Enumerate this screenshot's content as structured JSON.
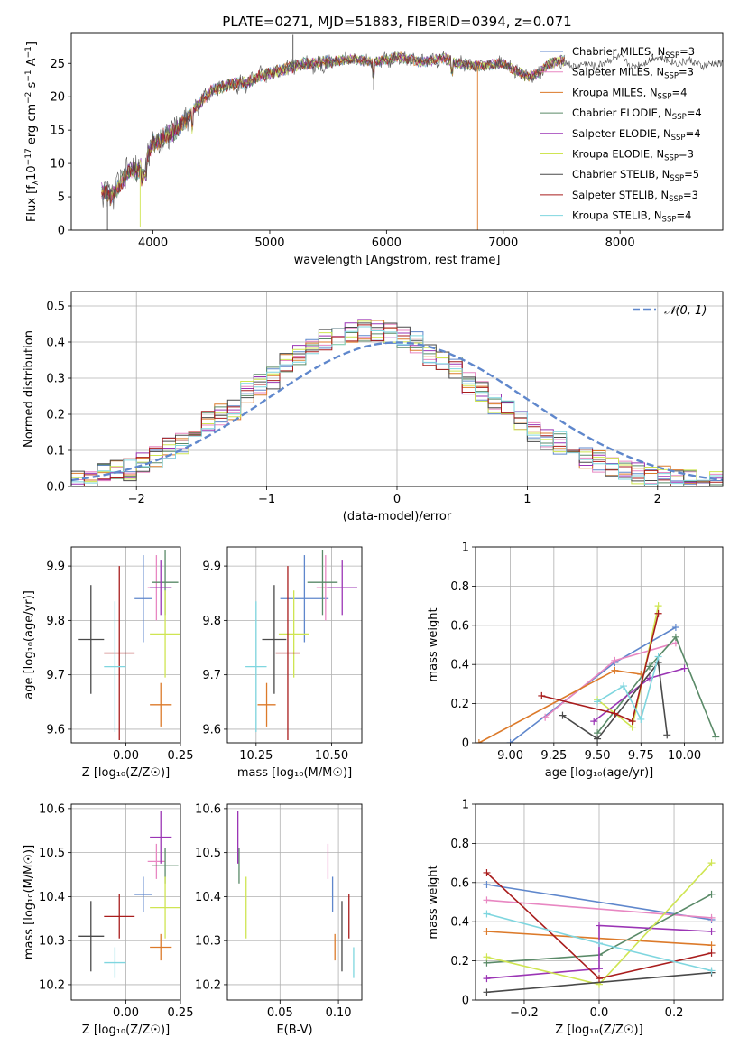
{
  "figure_title": "PLATE=0271, MJD=51883, FIBERID=0394, z=0.071",
  "colors": [
    "#5f87cc",
    "#e887c2",
    "#dc7a2a",
    "#5a8a68",
    "#9b35b5",
    "#cfe552",
    "#4a4a4a",
    "#a91d1d",
    "#7fd6df"
  ],
  "legend_entries": [
    "Chabrier MILES, N",
    "Salpeter MILES, N",
    "Kroupa MILES, N",
    "Chabrier ELODIE, N",
    "Salpeter ELODIE, N",
    "Kroupa ELODIE, N",
    "Chabrier STELIB, N",
    "Salpeter STELIB, N",
    "Kroupa STELIB, N"
  ],
  "legend_sub": "SSP",
  "nssp": [
    "=3",
    "=3",
    "=4",
    "=4",
    "=4",
    "=3",
    "=5",
    "=3",
    "=4"
  ],
  "normal_label": "𝒩(0, 1)",
  "chart_data": [
    {
      "id": "spectrum",
      "type": "line",
      "xlabel": "wavelength [Angstrom, rest frame]",
      "ylabel_parts": [
        "Flux [f",
        "λ",
        "10",
        "−17",
        " erg cm",
        "−2",
        " s",
        "−1",
        " A",
        "−1",
        "]"
      ],
      "xlim": [
        3300,
        8880
      ],
      "ylim": [
        0,
        29.5
      ],
      "xticks": [
        4000,
        5000,
        6000,
        7000,
        8000
      ],
      "yticks": [
        0,
        5,
        10,
        15,
        20,
        25
      ],
      "grid": false,
      "legend": "right",
      "continuum": [
        [
          3560,
          6
        ],
        [
          3640,
          5
        ],
        [
          3720,
          7
        ],
        [
          3800,
          9
        ],
        [
          3880,
          9
        ],
        [
          3950,
          11
        ],
        [
          4000,
          13
        ],
        [
          4100,
          14
        ],
        [
          4200,
          15
        ],
        [
          4300,
          17
        ],
        [
          4400,
          19
        ],
        [
          4500,
          21
        ],
        [
          4600,
          21.5
        ],
        [
          4700,
          22
        ],
        [
          4800,
          22
        ],
        [
          4900,
          23
        ],
        [
          5000,
          23.5
        ],
        [
          5100,
          24
        ],
        [
          5200,
          24.5
        ],
        [
          5300,
          25
        ],
        [
          5400,
          25
        ],
        [
          5500,
          25.2
        ],
        [
          5600,
          25.4
        ],
        [
          5700,
          25.6
        ],
        [
          5800,
          25.4
        ],
        [
          5900,
          25.2
        ],
        [
          6000,
          25.5
        ],
        [
          6100,
          26
        ],
        [
          6200,
          25.6
        ],
        [
          6300,
          25.2
        ],
        [
          6400,
          25.5
        ],
        [
          6500,
          25.8
        ],
        [
          6600,
          25
        ],
        [
          6700,
          24.8
        ],
        [
          6800,
          24.6
        ],
        [
          6900,
          24.8
        ],
        [
          7000,
          25
        ],
        [
          7100,
          24
        ],
        [
          7200,
          23
        ],
        [
          7300,
          23.5
        ],
        [
          7400,
          25
        ],
        [
          7500,
          25.5
        ],
        [
          7600,
          24.5
        ],
        [
          7700,
          25
        ],
        [
          7800,
          24.5
        ],
        [
          7900,
          25.5
        ],
        [
          8000,
          26
        ],
        [
          8100,
          24.5
        ],
        [
          8200,
          25
        ],
        [
          8300,
          26
        ],
        [
          8400,
          25.5
        ],
        [
          8500,
          25
        ],
        [
          8600,
          25.5
        ],
        [
          8700,
          24.5
        ],
        [
          8800,
          25
        ]
      ],
      "spikes": [
        [
          5199,
          29.3,
          "#4a4a4a"
        ],
        [
          6780,
          0,
          "#dc7a2a"
        ],
        [
          7400,
          0,
          "#a91d1d"
        ],
        [
          3610,
          0,
          "#4a4a4a"
        ],
        [
          3890,
          0.5,
          "#cfe552"
        ],
        [
          5890,
          21,
          "#4a4a4a"
        ]
      ]
    },
    {
      "id": "residuals",
      "type": "histogram",
      "xlabel": "(data-model)/error",
      "ylabel": "Normed distribution",
      "xlim": [
        -2.5,
        2.5
      ],
      "ylim": [
        0,
        0.54
      ],
      "xticks": [
        -2,
        -1,
        0,
        1,
        2
      ],
      "yticks": [
        0.0,
        0.1,
        0.2,
        0.3,
        0.4,
        0.5
      ],
      "grid": true,
      "legend": "top-right",
      "bin_width": 0.1,
      "bin_start": -2.5,
      "base": [
        0.018,
        0.022,
        0.027,
        0.033,
        0.04,
        0.048,
        0.057,
        0.068,
        0.08,
        0.093,
        0.107,
        0.122,
        0.139,
        0.157,
        0.176,
        0.196,
        0.217,
        0.238,
        0.259,
        0.281,
        0.302,
        0.323,
        0.343,
        0.362,
        0.379,
        0.394,
        0.407,
        0.418,
        0.425,
        0.43,
        0.432,
        0.431,
        0.427,
        0.42,
        0.41,
        0.398,
        0.384,
        0.368,
        0.35,
        0.33,
        0.309,
        0.288,
        0.267,
        0.246,
        0.225,
        0.205,
        0.186,
        0.168,
        0.151,
        0.135,
        0.12,
        0.106,
        0.094,
        0.082,
        0.072,
        0.063,
        0.054,
        0.047,
        0.04,
        0.034,
        0.029,
        0.025,
        0.021,
        0.018,
        0.015,
        0.013,
        0.011,
        0.01
      ],
      "base_note": "",
      "normal_pdf": true
    },
    {
      "id": "age-vs-Z",
      "type": "scatter",
      "xlabel": "Z [log₁₀(Z/Z☉)]",
      "ylabel": "age  [log₁₀(age/yr)]",
      "xlim": [
        -0.25,
        0.25
      ],
      "ylim": [
        9.575,
        9.935
      ],
      "xticks": [
        0.0,
        0.25
      ],
      "xtick_labels": [
        "0.00",
        "0.25"
      ],
      "yticks": [
        9.6,
        9.7,
        9.8,
        9.9
      ],
      "grid": true,
      "points": [
        {
          "c": 0,
          "x": 0.08,
          "y": 9.84,
          "xe": 0.04,
          "ye": 0.08
        },
        {
          "c": 1,
          "x": 0.14,
          "y": 9.86,
          "xe": 0.04,
          "ye": 0.06
        },
        {
          "c": 2,
          "x": 0.16,
          "y": 9.645,
          "xe": 0.05,
          "ye": 0.04
        },
        {
          "c": 3,
          "x": 0.18,
          "y": 9.87,
          "xe": 0.06,
          "ye": 0.06
        },
        {
          "c": 4,
          "x": 0.16,
          "y": 9.86,
          "xe": 0.05,
          "ye": 0.05
        },
        {
          "c": 5,
          "x": 0.18,
          "y": 9.775,
          "xe": 0.07,
          "ye": 0.08
        },
        {
          "c": 6,
          "x": -0.16,
          "y": 9.765,
          "xe": 0.06,
          "ye": 0.1
        },
        {
          "c": 7,
          "x": -0.03,
          "y": 9.74,
          "xe": 0.07,
          "ye": 0.16
        },
        {
          "c": 8,
          "x": -0.05,
          "y": 9.715,
          "xe": 0.05,
          "ye": 0.12
        }
      ]
    },
    {
      "id": "age-vs-mass",
      "type": "scatter",
      "xlabel": "mass [log₁₀(M/M☉)]",
      "ylabel": "",
      "xlim": [
        10.155,
        10.6
      ],
      "ylim": [
        9.575,
        9.935
      ],
      "xticks": [
        10.25,
        10.5
      ],
      "xtick_labels": [
        "10.25",
        "10.50"
      ],
      "yticks": [
        9.6,
        9.7,
        9.8,
        9.9
      ],
      "grid": true,
      "points": [
        {
          "c": 0,
          "x": 10.41,
          "y": 9.84,
          "xe": 0.08,
          "ye": 0.08
        },
        {
          "c": 1,
          "x": 10.48,
          "y": 9.86,
          "xe": 0.03,
          "ye": 0.06
        },
        {
          "c": 2,
          "x": 10.285,
          "y": 9.645,
          "xe": 0.03,
          "ye": 0.04
        },
        {
          "c": 3,
          "x": 10.47,
          "y": 9.87,
          "xe": 0.05,
          "ye": 0.06
        },
        {
          "c": 4,
          "x": 10.535,
          "y": 9.86,
          "xe": 0.05,
          "ye": 0.05
        },
        {
          "c": 5,
          "x": 10.375,
          "y": 9.775,
          "xe": 0.05,
          "ye": 0.08
        },
        {
          "c": 6,
          "x": 10.31,
          "y": 9.765,
          "xe": 0.04,
          "ye": 0.1
        },
        {
          "c": 7,
          "x": 10.355,
          "y": 9.74,
          "xe": 0.04,
          "ye": 0.16
        },
        {
          "c": 8,
          "x": 10.25,
          "y": 9.715,
          "xe": 0.035,
          "ye": 0.12
        }
      ]
    },
    {
      "id": "weight-vs-age",
      "type": "line",
      "xlabel": "age  [log₁₀(age/yr)]",
      "ylabel": "mass weight",
      "xlim": [
        8.8,
        10.22
      ],
      "ylim": [
        0,
        1.0
      ],
      "xticks": [
        9.0,
        9.25,
        9.5,
        9.75,
        10.0
      ],
      "xtick_labels": [
        "9.00",
        "9.25",
        "9.50",
        "9.75",
        "10.00"
      ],
      "yticks": [
        0.0,
        0.2,
        0.4,
        0.6,
        0.8,
        1.0
      ],
      "grid": true,
      "series": [
        {
          "c": 0,
          "x": [
            9.0,
            9.6,
            9.95
          ],
          "y": [
            0.0,
            0.41,
            0.59
          ]
        },
        {
          "c": 1,
          "x": [
            9.2,
            9.6,
            9.95
          ],
          "y": [
            0.13,
            0.42,
            0.51
          ]
        },
        {
          "c": 2,
          "x": [
            8.82,
            9.6,
            9.75
          ],
          "y": [
            0.0,
            0.37,
            0.35
          ]
        },
        {
          "c": 3,
          "x": [
            9.5,
            9.8,
            9.95,
            10.18
          ],
          "y": [
            0.05,
            0.39,
            0.54,
            0.03
          ]
        },
        {
          "c": 4,
          "x": [
            9.48,
            9.8,
            10.0
          ],
          "y": [
            0.11,
            0.33,
            0.38
          ]
        },
        {
          "c": 5,
          "x": [
            9.5,
            9.7,
            9.85
          ],
          "y": [
            0.22,
            0.08,
            0.7
          ]
        },
        {
          "c": 6,
          "x": [
            9.3,
            9.5,
            9.85,
            9.9
          ],
          "y": [
            0.14,
            0.02,
            0.41,
            0.04
          ]
        },
        {
          "c": 7,
          "x": [
            9.18,
            9.6,
            9.7,
            9.85
          ],
          "y": [
            0.24,
            0.15,
            0.11,
            0.66
          ]
        },
        {
          "c": 8,
          "x": [
            9.5,
            9.65,
            9.75,
            9.85
          ],
          "y": [
            0.21,
            0.29,
            0.12,
            0.44
          ]
        }
      ]
    },
    {
      "id": "mass-vs-Z",
      "type": "scatter",
      "xlabel": "Z [log₁₀(Z/Z☉)]",
      "ylabel": "mass [log₁₀(M/M☉)]",
      "xlim": [
        -0.25,
        0.25
      ],
      "ylim": [
        10.165,
        10.61
      ],
      "xticks": [
        0.0,
        0.25
      ],
      "xtick_labels": [
        "0.00",
        "0.25"
      ],
      "yticks": [
        10.2,
        10.3,
        10.4,
        10.5,
        10.6
      ],
      "grid": true,
      "points": [
        {
          "c": 0,
          "x": 0.08,
          "y": 10.405,
          "xe": 0.04,
          "ye": 0.04
        },
        {
          "c": 1,
          "x": 0.14,
          "y": 10.48,
          "xe": 0.04,
          "ye": 0.04
        },
        {
          "c": 2,
          "x": 0.16,
          "y": 10.285,
          "xe": 0.05,
          "ye": 0.03
        },
        {
          "c": 3,
          "x": 0.18,
          "y": 10.47,
          "xe": 0.06,
          "ye": 0.04
        },
        {
          "c": 4,
          "x": 0.16,
          "y": 10.535,
          "xe": 0.05,
          "ye": 0.06
        },
        {
          "c": 5,
          "x": 0.18,
          "y": 10.375,
          "xe": 0.07,
          "ye": 0.07
        },
        {
          "c": 6,
          "x": -0.16,
          "y": 10.31,
          "xe": 0.06,
          "ye": 0.08
        },
        {
          "c": 7,
          "x": -0.03,
          "y": 10.355,
          "xe": 0.07,
          "ye": 0.05
        },
        {
          "c": 8,
          "x": -0.05,
          "y": 10.25,
          "xe": 0.05,
          "ye": 0.035
        }
      ]
    },
    {
      "id": "mass-vs-ebv",
      "type": "scatter",
      "xlabel": "E(B-V)",
      "ylabel": "",
      "xlim": [
        0.005,
        0.12
      ],
      "ylim": [
        10.165,
        10.61
      ],
      "xticks": [
        0.05,
        0.1
      ],
      "xtick_labels": [
        "0.05",
        "0.10"
      ],
      "yticks": [
        10.2,
        10.3,
        10.4,
        10.5,
        10.6
      ],
      "grid": true,
      "points": [
        {
          "c": 0,
          "x": 0.095,
          "y": 10.405,
          "xe": 0,
          "ye": 0.04
        },
        {
          "c": 1,
          "x": 0.091,
          "y": 10.48,
          "xe": 0,
          "ye": 0.04
        },
        {
          "c": 2,
          "x": 0.097,
          "y": 10.285,
          "xe": 0,
          "ye": 0.03
        },
        {
          "c": 3,
          "x": 0.015,
          "y": 10.47,
          "xe": 0,
          "ye": 0.04
        },
        {
          "c": 4,
          "x": 0.014,
          "y": 10.535,
          "xe": 0,
          "ye": 0.06
        },
        {
          "c": 5,
          "x": 0.021,
          "y": 10.375,
          "xe": 0,
          "ye": 0.07
        },
        {
          "c": 6,
          "x": 0.103,
          "y": 10.31,
          "xe": 0,
          "ye": 0.08
        },
        {
          "c": 7,
          "x": 0.109,
          "y": 10.355,
          "xe": 0,
          "ye": 0.05
        },
        {
          "c": 8,
          "x": 0.113,
          "y": 10.25,
          "xe": 0,
          "ye": 0.035
        }
      ]
    },
    {
      "id": "weight-vs-Z",
      "type": "line",
      "xlabel": "Z [log₁₀(Z/Z☉)]",
      "ylabel": "mass weight",
      "xlim": [
        -0.33,
        0.33
      ],
      "ylim": [
        0,
        1.0
      ],
      "xticks": [
        -0.2,
        0.0,
        0.2
      ],
      "xtick_labels": [
        "−0.2",
        "0.0",
        "0.2"
      ],
      "yticks": [
        0.0,
        0.2,
        0.4,
        0.6,
        0.8,
        1.0
      ],
      "grid": true,
      "series": [
        {
          "c": 0,
          "x": [
            -0.3,
            0.3
          ],
          "y": [
            0.59,
            0.41
          ]
        },
        {
          "c": 1,
          "x": [
            -0.3,
            0.3
          ],
          "y": [
            0.51,
            0.42
          ]
        },
        {
          "c": 2,
          "x": [
            -0.3,
            0.3
          ],
          "y": [
            0.35,
            0.28
          ]
        },
        {
          "c": 3,
          "x": [
            -0.3,
            0.0,
            0.3
          ],
          "y": [
            0.19,
            0.23,
            0.54
          ]
        },
        {
          "c": 4,
          "x": [
            -0.3,
            0.0,
            0.0,
            0.3
          ],
          "y": [
            0.11,
            0.16,
            0.38,
            0.35
          ]
        },
        {
          "c": 5,
          "x": [
            -0.3,
            0.0,
            0.3
          ],
          "y": [
            0.22,
            0.08,
            0.7
          ]
        },
        {
          "c": 6,
          "x": [
            -0.3,
            0.3
          ],
          "y": [
            0.04,
            0.14
          ]
        },
        {
          "c": 7,
          "x": [
            -0.3,
            0.0,
            0.3
          ],
          "y": [
            0.65,
            0.11,
            0.24
          ]
        },
        {
          "c": 8,
          "x": [
            -0.3,
            0.0,
            0.3
          ],
          "y": [
            0.44,
            0.29,
            0.15
          ]
        }
      ]
    }
  ]
}
